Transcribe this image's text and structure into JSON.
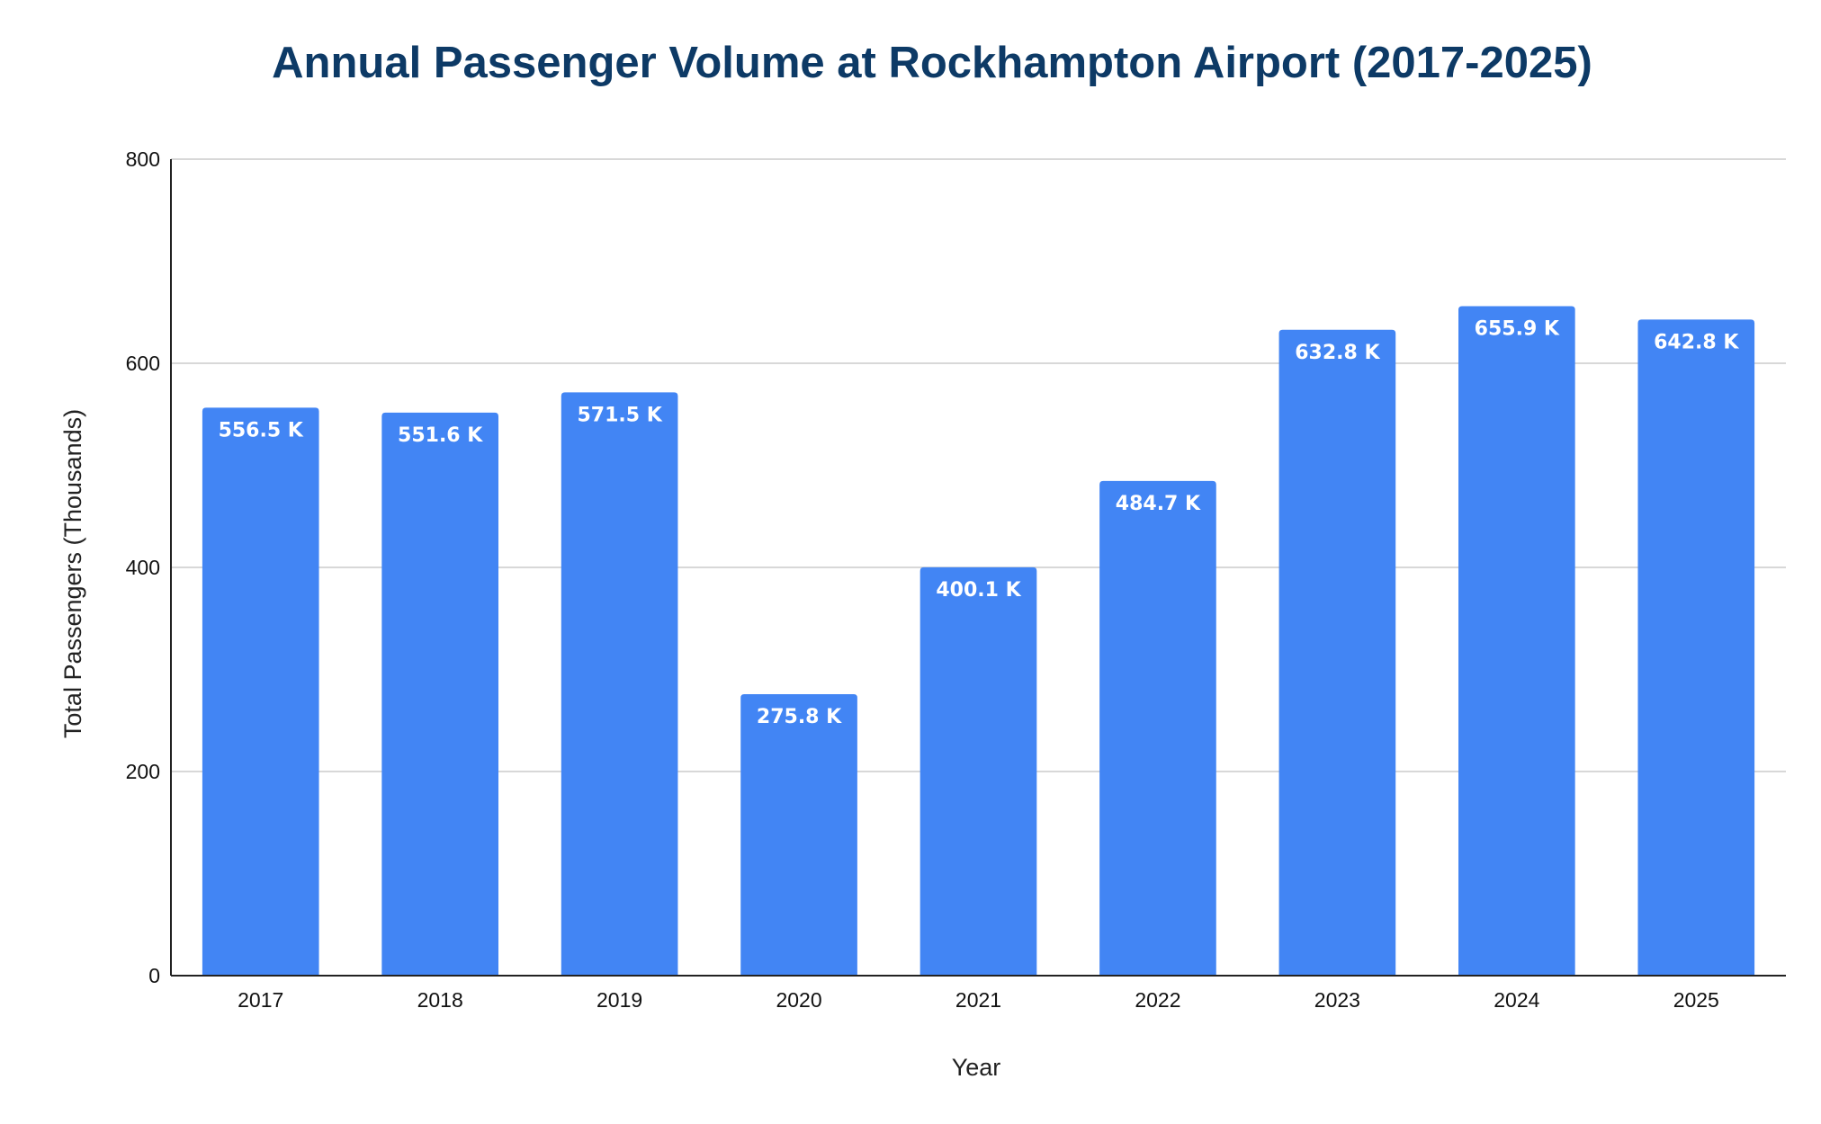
{
  "chart_data": {
    "type": "bar",
    "title": "Annual Passenger Volume at Rockhampton Airport (2017-2025)",
    "xlabel": "Year",
    "ylabel": "Total Passengers (Thousands)",
    "categories": [
      "2017",
      "2018",
      "2019",
      "2020",
      "2021",
      "2022",
      "2023",
      "2024",
      "2025"
    ],
    "values": [
      556.5,
      551.6,
      571.5,
      275.8,
      400.1,
      484.7,
      632.8,
      655.9,
      642.8
    ],
    "data_labels": [
      "556.5 K",
      "551.6 K",
      "571.5 K",
      "275.8 K",
      "400.1 K",
      "484.7 K",
      "632.8 K",
      "655.9 K",
      "642.8 K"
    ],
    "ylim": [
      0,
      800
    ],
    "yticks": [
      0,
      200,
      400,
      600,
      800
    ],
    "grid": true,
    "legend": "none",
    "colors": {
      "bar": "#4285f4",
      "title": "#0d3a66",
      "grid": "#cccccc",
      "axis": "#222222",
      "data_label": "#ffffff"
    }
  }
}
